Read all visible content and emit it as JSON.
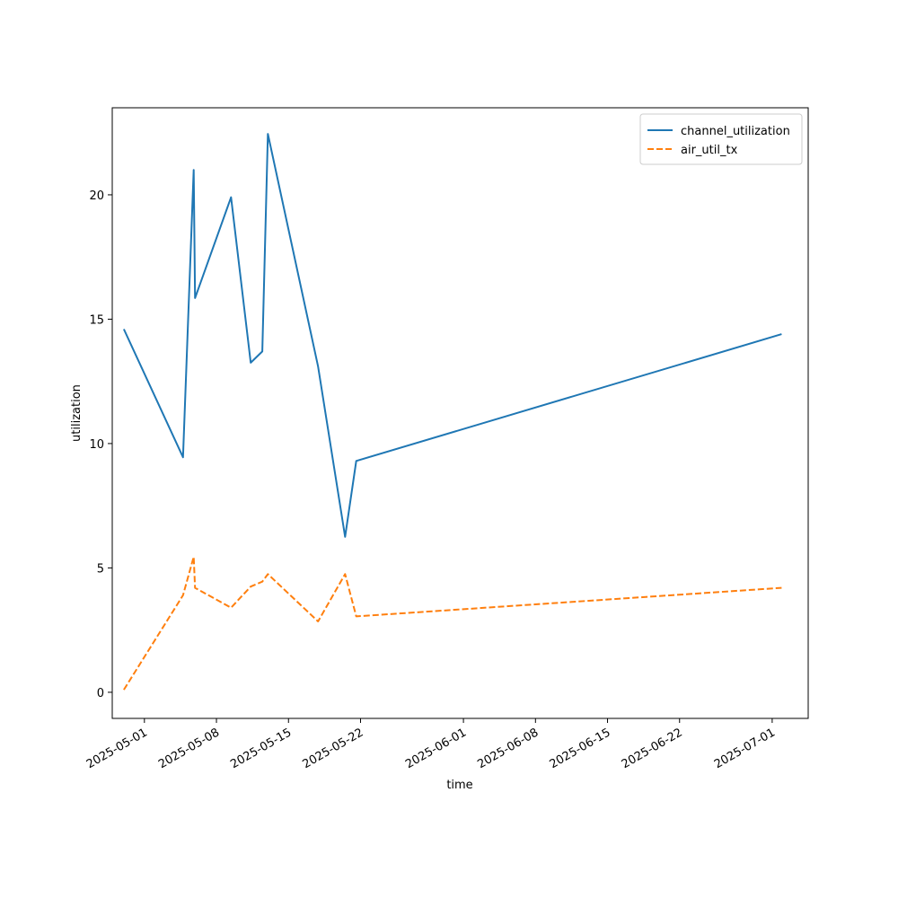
{
  "chart_data": {
    "type": "line",
    "xlabel": "time",
    "ylabel": "utilization",
    "xlim": [
      "2025-04-27T21:00",
      "2025-07-04T12:00"
    ],
    "ylim": [
      -1.05,
      23.5
    ],
    "x_ticks": [
      "2025-05-01",
      "2025-05-08",
      "2025-05-15",
      "2025-05-22",
      "2025-06-01",
      "2025-06-08",
      "2025-06-15",
      "2025-06-22",
      "2025-07-01"
    ],
    "y_ticks": [
      0,
      5,
      10,
      15,
      20
    ],
    "legend_position": "top-right",
    "grid": false,
    "series": [
      {
        "name": "channel_utilization",
        "color": "#1f77b4",
        "dash": "solid",
        "points": [
          {
            "x": "2025-04-29T00:00",
            "y": 14.6
          },
          {
            "x": "2025-05-04T18:00",
            "y": 9.45
          },
          {
            "x": "2025-05-05T19:00",
            "y": 21.0
          },
          {
            "x": "2025-05-05T22:00",
            "y": 15.85
          },
          {
            "x": "2025-05-09T10:00",
            "y": 19.9
          },
          {
            "x": "2025-05-11T08:00",
            "y": 13.25
          },
          {
            "x": "2025-05-12T11:00",
            "y": 13.7
          },
          {
            "x": "2025-05-13T00:00",
            "y": 22.45
          },
          {
            "x": "2025-05-17T21:00",
            "y": 13.1
          },
          {
            "x": "2025-05-20T12:00",
            "y": 6.25
          },
          {
            "x": "2025-05-21T14:00",
            "y": 9.3
          },
          {
            "x": "2025-07-01T22:00",
            "y": 14.4
          }
        ]
      },
      {
        "name": "air_util_tx",
        "color": "#ff7f0e",
        "dash": "dashed",
        "points": [
          {
            "x": "2025-04-29T00:00",
            "y": 0.1
          },
          {
            "x": "2025-05-04T18:00",
            "y": 3.9
          },
          {
            "x": "2025-05-05T19:00",
            "y": 5.45
          },
          {
            "x": "2025-05-05T22:00",
            "y": 4.2
          },
          {
            "x": "2025-05-09T10:00",
            "y": 3.4
          },
          {
            "x": "2025-05-11T08:00",
            "y": 4.25
          },
          {
            "x": "2025-05-12T11:00",
            "y": 4.45
          },
          {
            "x": "2025-05-13T00:00",
            "y": 4.75
          },
          {
            "x": "2025-05-17T21:00",
            "y": 2.85
          },
          {
            "x": "2025-05-20T12:00",
            "y": 4.75
          },
          {
            "x": "2025-05-21T14:00",
            "y": 3.05
          },
          {
            "x": "2025-07-01T22:00",
            "y": 4.2
          }
        ]
      }
    ]
  }
}
